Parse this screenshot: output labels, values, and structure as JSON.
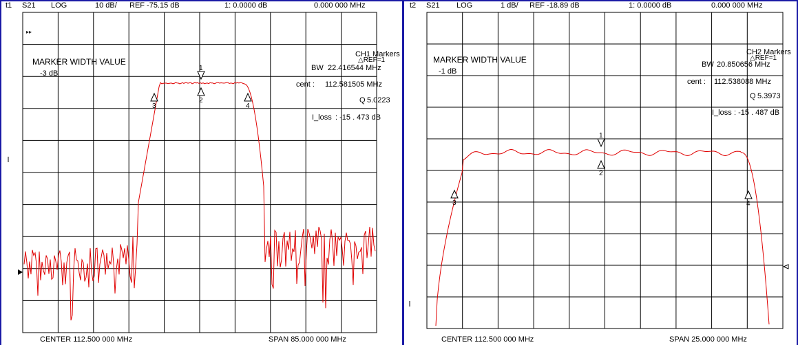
{
  "colors": {
    "frame": "#1a1aa6",
    "trace": "#e00000",
    "grid": "#000000"
  },
  "channel1": {
    "header": {
      "id": "t1",
      "param": "S21",
      "format": "LOG",
      "scale": "10 dB/",
      "ref": "REF -75.15 dB",
      "marker": "1: 0.0000 dB",
      "freq": "0.000 000 MHz"
    },
    "footer": {
      "center": "CENTER 112.500 000 MHz",
      "span": "SPAN  85.000 000 MHz"
    },
    "small_mark": "▸▸",
    "marker_width_title": "MARKER WIDTH VALUE",
    "marker_width_db": "-3 dB",
    "markers_title": "CH1 Markers",
    "ref_label": "△REF=1",
    "bw_label": "BW",
    "bw_value": "22.416544 MHz",
    "cent_label": "cent :",
    "cent_value": "112.581505 MHz",
    "q_label": "Q",
    "q_value": "5.0223",
    "loss_label": "I_loss",
    "loss_value": ": -15 . 473 dB",
    "marker_labels": [
      "1",
      "2",
      "3",
      "4"
    ]
  },
  "channel2": {
    "header": {
      "id": "t2",
      "param": "S21",
      "format": "LOG",
      "scale": "1 dB/",
      "ref": "REF -18.89 dB",
      "marker": "1: 0.0000 dB",
      "freq": "0.000 000 MHz"
    },
    "footer": {
      "center": "CENTER 112.500 000 MHz",
      "span": "SPAN  25.000 000 MHz"
    },
    "marker_width_title": "MARKER WIDTH VALUE",
    "marker_width_db": "-1 dB",
    "markers_title": "CH2 Markers",
    "ref_label": "△REF=1",
    "bw_label": "BW",
    "bw_value": "20.850656 MHz",
    "cent_label": "cent :",
    "cent_value": "112.538088 MHz",
    "q_label": "Q",
    "q_value": "5.3973",
    "loss_label": "I_loss",
    "loss_value": ": -15 . 487 dB",
    "marker_labels": [
      "1",
      "2",
      "3",
      "4"
    ]
  }
}
